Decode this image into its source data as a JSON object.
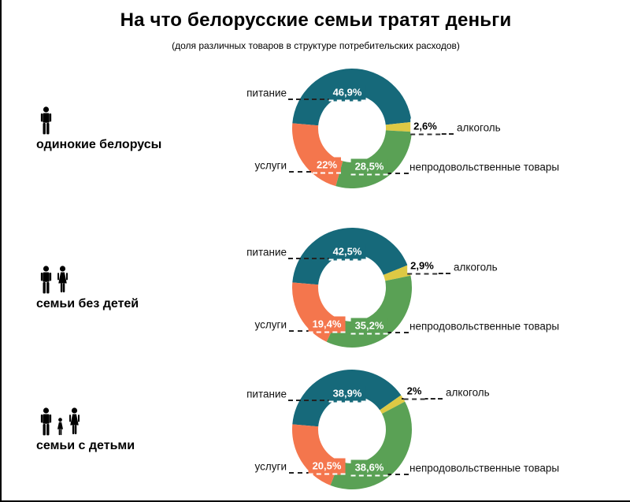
{
  "title": "На что белорусские семьи тратят деньги",
  "subtitle": "(доля различных товаров в структуре потребительских расходов)",
  "colors": {
    "food": "#16697A",
    "alcohol": "#DDC944",
    "nonfood": "#5AA155",
    "services": "#F4764D"
  },
  "chart_data": [
    {
      "type": "pie",
      "style": "donut",
      "group_label": "одинокие белорусы",
      "icons": [
        "man"
      ],
      "segments": [
        {
          "key": "food",
          "label": "питание",
          "value": 46.9,
          "display": "46,9%"
        },
        {
          "key": "alcohol",
          "label": "алкоголь",
          "value": 2.6,
          "display": "2,6%"
        },
        {
          "key": "nonfood",
          "label": "непродовольственные товары",
          "value": 28.5,
          "display": "28,5%"
        },
        {
          "key": "services",
          "label": "услуги",
          "value": 22,
          "display": "22%"
        }
      ]
    },
    {
      "type": "pie",
      "style": "donut",
      "group_label": "семьи без детей",
      "icons": [
        "man",
        "woman"
      ],
      "segments": [
        {
          "key": "food",
          "label": "питание",
          "value": 42.5,
          "display": "42,5%"
        },
        {
          "key": "alcohol",
          "label": "алкоголь",
          "value": 2.9,
          "display": "2,9%"
        },
        {
          "key": "nonfood",
          "label": "непродовольственные товары",
          "value": 35.2,
          "display": "35,2%"
        },
        {
          "key": "services",
          "label": "услуги",
          "value": 19.4,
          "display": "19,4%"
        }
      ]
    },
    {
      "type": "pie",
      "style": "donut",
      "group_label": "семьи с детьми",
      "icons": [
        "man",
        "child",
        "woman"
      ],
      "segments": [
        {
          "key": "food",
          "label": "питание",
          "value": 38.9,
          "display": "38,9%"
        },
        {
          "key": "alcohol",
          "label": "алкоголь",
          "value": 2,
          "display": "2%"
        },
        {
          "key": "nonfood",
          "label": "непродовольственные товары",
          "value": 38.6,
          "display": "38,6%"
        },
        {
          "key": "services",
          "label": "услуги",
          "value": 20.5,
          "display": "20,5%"
        }
      ]
    }
  ]
}
